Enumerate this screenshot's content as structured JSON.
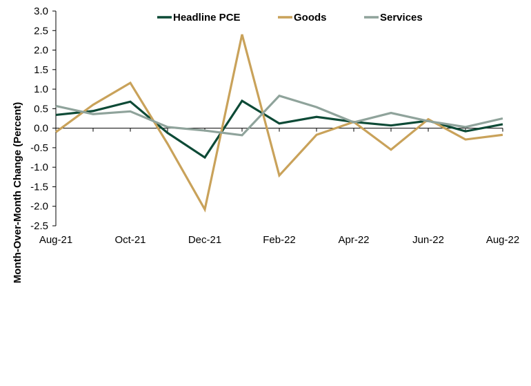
{
  "chart_data": {
    "type": "line",
    "title": "",
    "xlabel": "",
    "ylabel": "Month-Over-Month Change (Percent)",
    "ylim": [
      -2.5,
      3.0
    ],
    "y_ticks": [
      "3.0",
      "2.5",
      "2.0",
      "1.5",
      "1.0",
      "0.5",
      "0.0",
      "-0.5",
      "-1.0",
      "-1.5",
      "-2.0",
      "-2.5"
    ],
    "x": [
      "Aug-21",
      "Sep-21",
      "Oct-21",
      "Nov-21",
      "Dec-21",
      "Jan-22",
      "Feb-22",
      "Mar-22",
      "Apr-22",
      "May-22",
      "Jun-22",
      "Jul-22",
      "Aug-22"
    ],
    "x_tick_labels": [
      "Aug-21",
      "Oct-21",
      "Dec-21",
      "Feb-22",
      "Apr-22",
      "Jun-22",
      "Aug-22"
    ],
    "grid": false,
    "legend_position": "top",
    "series": [
      {
        "name": "Headline PCE",
        "color": "#0d4a36",
        "values": [
          0.34,
          0.44,
          0.68,
          -0.12,
          -0.75,
          0.7,
          0.12,
          0.29,
          0.16,
          0.07,
          0.19,
          -0.08,
          0.1
        ]
      },
      {
        "name": "Goods",
        "color": "#c9a25a",
        "values": [
          -0.1,
          0.6,
          1.16,
          -0.4,
          -2.08,
          2.4,
          -1.21,
          -0.17,
          0.16,
          -0.55,
          0.23,
          -0.29,
          -0.17
        ]
      },
      {
        "name": "Services",
        "color": "#8fa39b",
        "values": [
          0.57,
          0.36,
          0.43,
          0.03,
          -0.06,
          -0.18,
          0.83,
          0.54,
          0.15,
          0.39,
          0.18,
          0.03,
          0.25
        ]
      }
    ]
  }
}
